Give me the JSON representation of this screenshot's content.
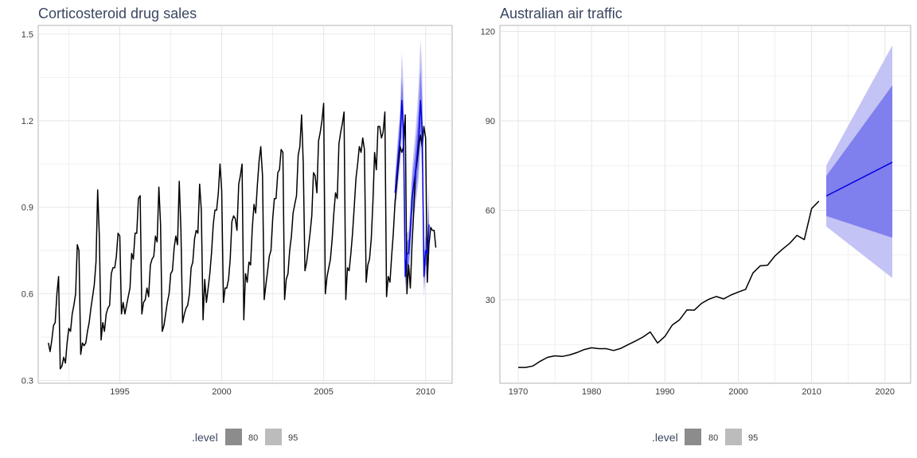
{
  "chart_data": [
    {
      "type": "line",
      "title": "Corticosteroid drug sales",
      "xlabel": "",
      "ylabel": "",
      "xlim": [
        1991.0,
        2011.3
      ],
      "ylim": [
        0.29,
        1.53
      ],
      "x_ticks": [
        1995,
        2000,
        2005,
        2010
      ],
      "x_tick_labels": [
        "1995",
        "2000",
        "2005",
        "2010"
      ],
      "y_ticks": [
        0.3,
        0.6,
        0.9,
        1.2,
        1.5
      ],
      "y_tick_labels": [
        "0.3",
        "0.6",
        "0.9",
        "1.2",
        "1.5"
      ],
      "grid": true,
      "history": {
        "start": 1991.5,
        "step": 0.08333,
        "values": [
          0.43,
          0.4,
          0.44,
          0.49,
          0.5,
          0.6,
          0.66,
          0.34,
          0.35,
          0.38,
          0.36,
          0.43,
          0.48,
          0.47,
          0.53,
          0.56,
          0.6,
          0.77,
          0.75,
          0.39,
          0.43,
          0.42,
          0.43,
          0.47,
          0.5,
          0.55,
          0.59,
          0.63,
          0.71,
          0.96,
          0.8,
          0.44,
          0.5,
          0.47,
          0.53,
          0.55,
          0.56,
          0.67,
          0.69,
          0.69,
          0.73,
          0.81,
          0.8,
          0.53,
          0.57,
          0.53,
          0.56,
          0.59,
          0.62,
          0.74,
          0.72,
          0.81,
          0.81,
          0.93,
          0.94,
          0.53,
          0.57,
          0.58,
          0.62,
          0.59,
          0.7,
          0.72,
          0.73,
          0.8,
          0.78,
          0.97,
          0.84,
          0.47,
          0.49,
          0.53,
          0.57,
          0.6,
          0.67,
          0.68,
          0.76,
          0.8,
          0.77,
          0.99,
          0.82,
          0.5,
          0.53,
          0.55,
          0.56,
          0.6,
          0.69,
          0.71,
          0.79,
          0.82,
          0.81,
          0.98,
          0.89,
          0.51,
          0.65,
          0.57,
          0.62,
          0.67,
          0.74,
          0.84,
          0.89,
          0.89,
          0.95,
          1.05,
          0.96,
          0.57,
          0.62,
          0.62,
          0.65,
          0.72,
          0.85,
          0.87,
          0.86,
          0.82,
          0.98,
          1.01,
          1.05,
          0.51,
          0.67,
          0.64,
          0.71,
          0.7,
          0.83,
          0.91,
          0.88,
          0.98,
          1.06,
          1.11,
          1.01,
          0.58,
          0.63,
          0.68,
          0.73,
          0.75,
          0.86,
          0.93,
          0.93,
          1.02,
          1.03,
          1.1,
          1.09,
          0.58,
          0.65,
          0.67,
          0.75,
          0.8,
          0.88,
          0.91,
          0.94,
          1.08,
          1.11,
          1.22,
          1.05,
          0.68,
          0.71,
          0.76,
          0.81,
          0.87,
          1.02,
          1.01,
          0.95,
          1.13,
          1.16,
          1.2,
          1.26,
          0.6,
          0.66,
          0.69,
          0.72,
          0.79,
          0.88,
          0.95,
          0.93,
          1.12,
          1.16,
          1.19,
          1.23,
          0.58,
          0.69,
          0.68,
          0.74,
          0.81,
          0.9,
          1.0,
          1.05,
          1.11,
          1.09,
          1.14,
          1.1,
          0.64,
          0.7,
          0.72,
          0.79,
          0.92,
          1.09,
          1.03,
          1.18,
          1.18,
          1.14,
          1.16,
          1.23,
          0.59,
          0.66,
          0.64,
          0.73,
          0.81,
          0.92,
          0.98,
          1.05,
          1.11,
          1.09,
          1.11,
          1.22,
          0.6,
          0.7,
          0.62,
          0.77,
          0.88,
          1.02,
          1.06,
          1.11,
          1.15,
          1.11,
          1.18,
          1.14,
          0.64,
          0.77,
          0.83,
          0.82,
          0.82,
          0.76
        ]
      },
      "forecast": {
        "start": 2008.5,
        "step": 0.08333,
        "mean": [
          0.95,
          1.01,
          1.08,
          1.14,
          1.27,
          1.17,
          0.66,
          0.74,
          0.74,
          0.82,
          0.93,
          0.98,
          1.02,
          1.08,
          1.15,
          1.27,
          1.17,
          0.66,
          0.75,
          0.74,
          0.84
        ],
        "lo80": [
          0.91,
          0.96,
          1.02,
          1.07,
          1.19,
          1.09,
          0.63,
          0.7,
          0.69,
          0.77,
          0.87,
          0.91,
          0.94,
          0.99,
          1.05,
          1.16,
          1.06,
          0.62,
          0.7,
          0.69,
          0.77
        ],
        "hi80": [
          0.99,
          1.06,
          1.14,
          1.21,
          1.35,
          1.25,
          0.7,
          0.78,
          0.79,
          0.87,
          0.99,
          1.05,
          1.1,
          1.17,
          1.25,
          1.38,
          1.28,
          0.7,
          0.8,
          0.79,
          0.91
        ],
        "lo95": [
          0.89,
          0.93,
          0.99,
          1.04,
          1.14,
          1.05,
          0.61,
          0.68,
          0.67,
          0.74,
          0.83,
          0.87,
          0.9,
          0.95,
          1.0,
          1.11,
          1.01,
          0.59,
          0.67,
          0.66,
          0.73
        ],
        "hi95": [
          1.01,
          1.09,
          1.17,
          1.24,
          1.44,
          1.32,
          0.72,
          0.81,
          0.82,
          0.91,
          1.03,
          1.1,
          1.16,
          1.24,
          1.34,
          1.48,
          1.37,
          0.72,
          0.84,
          0.83,
          0.98
        ]
      }
    },
    {
      "type": "line",
      "title": "Australian air traffic",
      "xlabel": "",
      "ylabel": "",
      "xlim": [
        1967.5,
        2023.5
      ],
      "ylim": [
        2,
        122
      ],
      "x_ticks": [
        1970,
        1980,
        1990,
        2000,
        2010,
        2020
      ],
      "x_tick_labels": [
        "1970",
        "1980",
        "1990",
        "2000",
        "2010",
        "2020"
      ],
      "y_ticks": [
        30,
        60,
        90,
        120
      ],
      "y_tick_labels": [
        "30",
        "60",
        "90",
        "120"
      ],
      "grid": true,
      "history": {
        "x": [
          1970,
          1971,
          1972,
          1973,
          1974,
          1975,
          1976,
          1977,
          1978,
          1979,
          1980,
          1981,
          1982,
          1983,
          1984,
          1985,
          1986,
          1987,
          1988,
          1989,
          1990,
          1991,
          1992,
          1993,
          1994,
          1995,
          1996,
          1997,
          1998,
          1999,
          2000,
          2001,
          2002,
          2003,
          2004,
          2005,
          2006,
          2007,
          2008,
          2009,
          2010,
          2011
        ],
        "y": [
          7.3,
          7.3,
          7.8,
          9.4,
          10.7,
          11.2,
          11.0,
          11.5,
          12.3,
          13.3,
          13.9,
          13.6,
          13.6,
          13.0,
          13.7,
          15.0,
          16.2,
          17.5,
          19.2,
          15.5,
          17.7,
          21.5,
          23.3,
          26.6,
          26.5,
          28.8,
          30.2,
          31.1,
          30.3,
          31.6,
          32.6,
          33.5,
          39.0,
          41.4,
          41.6,
          44.7,
          46.9,
          48.9,
          51.6,
          50.2,
          60.6,
          63.1
        ]
      },
      "forecast": {
        "x": [
          2012,
          2021
        ],
        "mean": [
          64.8,
          76.1
        ],
        "lo80": [
          58.1,
          50.8
        ],
        "hi80": [
          71.5,
          101.9
        ],
        "lo95": [
          54.6,
          37.3
        ],
        "hi95": [
          75.0,
          115.3
        ]
      }
    }
  ],
  "legend": {
    "title": ".level",
    "items": [
      {
        "label": "80",
        "color": "#8c8c8c"
      },
      {
        "label": "95",
        "color": "#bcbcbc"
      }
    ]
  },
  "colors": {
    "history": "#000000",
    "forecast_line": "#0000e0",
    "band80": "#7f7fee",
    "band95": "#c3c3f5",
    "grid": "#e6e6e6",
    "frame": "#b3b3b3"
  }
}
